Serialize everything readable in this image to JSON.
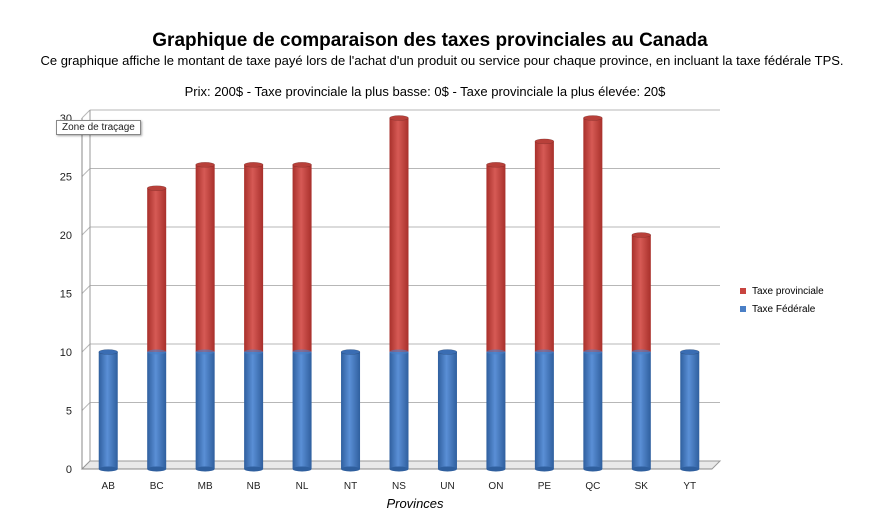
{
  "header": {
    "title": "Graphique de comparaison des taxes provinciales au Canada",
    "subtitle": "Ce graphique affiche le montant de taxe payé lors de l'achat d'un produit ou service pour chaque province, en incluant la taxe fédérale TPS.",
    "note": "Prix: 200$ - Taxe provinciale la plus basse: 0$ - Taxe provinciale la plus élevée: 20$"
  },
  "tooltip": {
    "text": "Zone de traçage"
  },
  "colors": {
    "federal": "#4a7fc6",
    "provincial": "#c8443f"
  },
  "chart_data": {
    "type": "bar",
    "stacked": true,
    "categories": [
      "AB",
      "BC",
      "MB",
      "NB",
      "NL",
      "NT",
      "NS",
      "UN",
      "ON",
      "PE",
      "QC",
      "SK",
      "YT"
    ],
    "series": [
      {
        "name": "Taxe Fédérale",
        "values": [
          10,
          10,
          10,
          10,
          10,
          10,
          10,
          10,
          10,
          10,
          10,
          10,
          10
        ]
      },
      {
        "name": "Taxe provinciale",
        "values": [
          0,
          14,
          16,
          16,
          16,
          0,
          20,
          0,
          16,
          18,
          20,
          10,
          0
        ]
      }
    ],
    "xlabel": "Provinces",
    "ylabel": "",
    "ylim": [
      0,
      30
    ],
    "yticks": [
      0,
      5,
      10,
      15,
      20,
      25,
      30
    ],
    "grid": true,
    "legend_position": "right"
  }
}
